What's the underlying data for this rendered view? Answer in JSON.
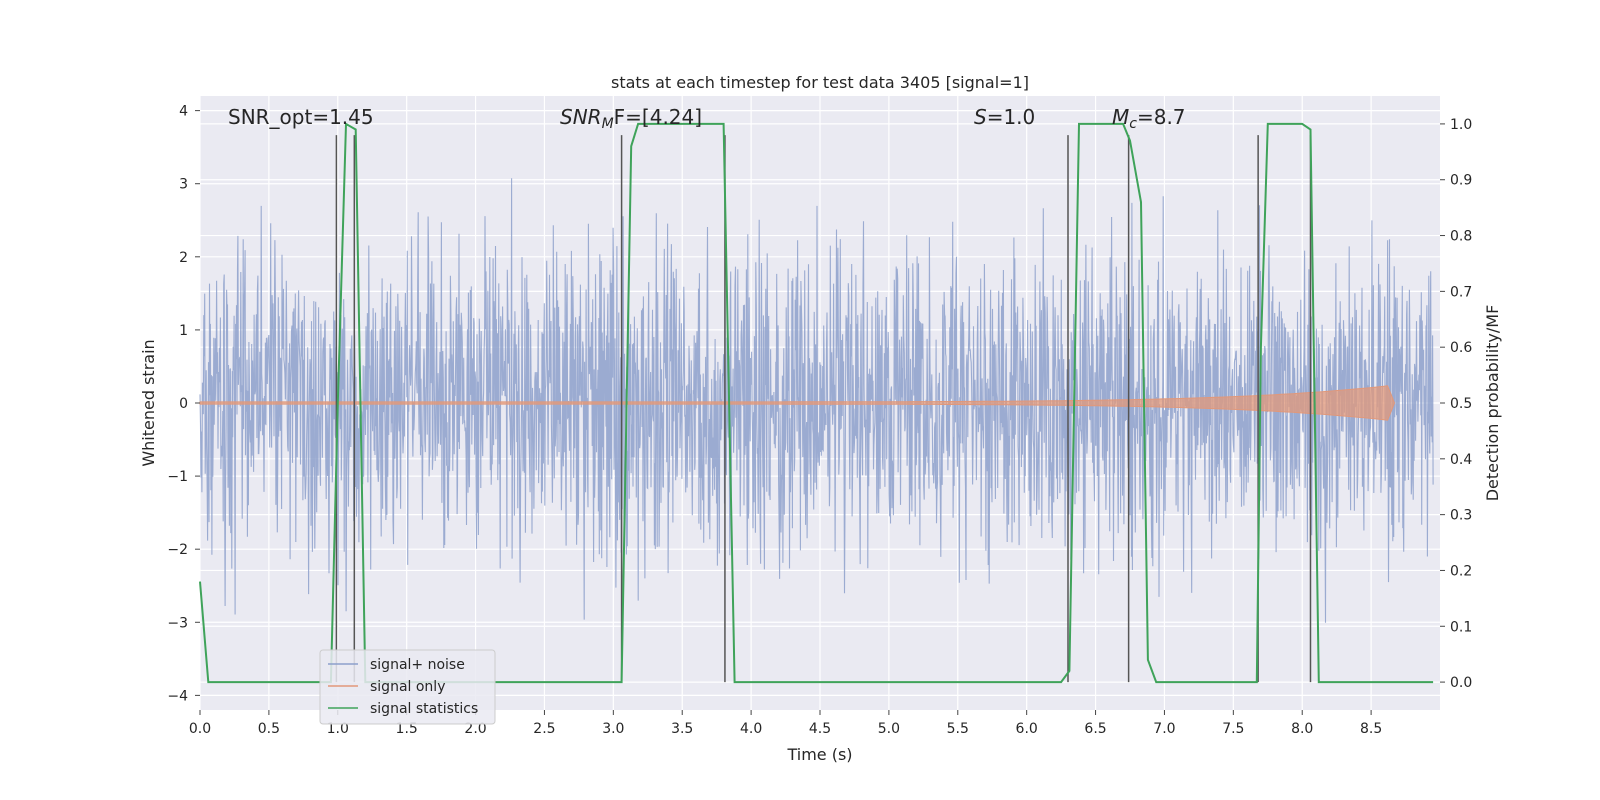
{
  "chart_data": {
    "type": "line",
    "title": "stats at each timestep for test data 3405 [signal=1]",
    "xlabel": "Time (s)",
    "ylabel": "Whitened strain",
    "ylabel_right": "Detection probability/MF",
    "xlim": [
      0.0,
      9.0
    ],
    "ylim": [
      -4.2,
      4.2
    ],
    "ylim_right": [
      -0.05,
      1.05
    ],
    "xticks": [
      "0.0",
      "0.5",
      "1.0",
      "1.5",
      "2.0",
      "2.5",
      "3.0",
      "3.5",
      "4.0",
      "4.5",
      "5.0",
      "5.5",
      "6.0",
      "6.5",
      "7.0",
      "7.5",
      "8.0",
      "8.5"
    ],
    "yticks": [
      "−4",
      "−3",
      "−2",
      "−1",
      "0",
      "1",
      "2",
      "3",
      "4"
    ],
    "yticks_right": [
      "0.0",
      "0.1",
      "0.2",
      "0.3",
      "0.4",
      "0.5",
      "0.6",
      "0.7",
      "0.8",
      "0.9",
      "1.0"
    ],
    "grid": true,
    "annotations": {
      "snr_opt": "SNR_opt=1.45",
      "snr_mf_prefix": "SNR",
      "snr_mf_sub": "M",
      "snr_mf_suffix": "F=[4.24]",
      "s_var": "S",
      "s_val": "=1.0",
      "mc_var": "M",
      "mc_sub": "c",
      "mc_val": "=8.7"
    },
    "legend": {
      "position": "lower-left",
      "entries": [
        "signal+ noise",
        "signal only",
        "signal statistics"
      ]
    },
    "colors": {
      "noise": "#8da0cb",
      "signal": "#e1987a",
      "stats": "#3fa35a",
      "markers": "#555555"
    },
    "series": [
      {
        "name": "signal statistics",
        "axis": "right",
        "x": [
          0.0,
          0.06,
          0.12,
          0.5,
          0.95,
          1.0,
          1.06,
          1.13,
          1.2,
          1.4,
          2.0,
          2.5,
          3.06,
          3.13,
          3.18,
          3.3,
          3.7,
          3.8,
          3.88,
          3.95,
          4.0,
          4.5,
          5.0,
          5.5,
          6.0,
          6.25,
          6.31,
          6.38,
          6.45,
          6.7,
          6.75,
          6.83,
          6.88,
          6.94,
          7.0,
          7.5,
          7.67,
          7.7,
          7.75,
          7.82,
          8.0,
          8.06,
          8.12,
          8.18,
          8.5,
          8.95
        ],
        "y": [
          0.18,
          0.0,
          0.0,
          0.0,
          0.0,
          0.5,
          1.0,
          0.99,
          0.0,
          0.0,
          0.0,
          0.0,
          0.0,
          0.96,
          1.0,
          1.0,
          1.0,
          1.0,
          0.0,
          0.0,
          0.0,
          0.0,
          0.0,
          0.0,
          0.0,
          0.0,
          0.02,
          1.0,
          1.0,
          1.0,
          0.97,
          0.86,
          0.04,
          0.0,
          0.0,
          0.0,
          0.0,
          0.6,
          1.0,
          1.0,
          1.0,
          0.99,
          0.0,
          0.0,
          0.0,
          0.0
        ]
      },
      {
        "name": "marker lines",
        "axis": "right",
        "x": [
          0.99,
          1.12,
          3.06,
          3.81,
          6.3,
          6.74,
          7.68,
          8.06
        ],
        "y": [
          0.98,
          0.98,
          0.98,
          0.98,
          0.98,
          0.98,
          0.98,
          0.98
        ]
      }
    ]
  }
}
